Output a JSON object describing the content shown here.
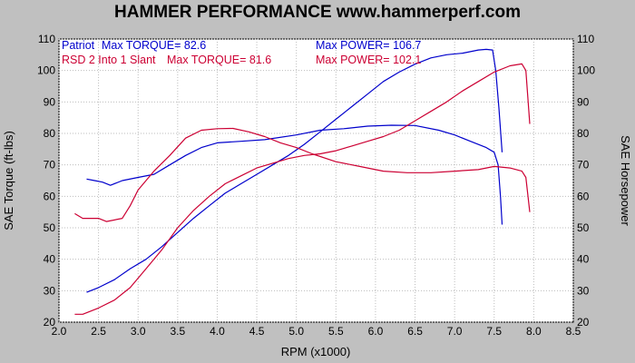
{
  "chart_data": {
    "type": "line",
    "title": "HAMMER PERFORMANCE www.hammerperf.com",
    "xlabel": "RPM (x1000)",
    "ylabel_left": "SAE Torque (ft-lbs)",
    "ylabel_right": "SAE Horsepower",
    "xlim": [
      2.0,
      8.5
    ],
    "ylim": [
      20,
      110
    ],
    "x_ticks": [
      "2.0",
      "2.5",
      "3.0",
      "3.5",
      "4.0",
      "4.5",
      "5.0",
      "5.5",
      "6.0",
      "6.5",
      "7.0",
      "7.5",
      "8.0",
      "8.5"
    ],
    "y_ticks": [
      "20",
      "30",
      "40",
      "50",
      "60",
      "70",
      "80",
      "90",
      "100",
      "110"
    ],
    "grid": true,
    "legend": [
      {
        "name": "Patriot",
        "torque_text": "Max TORQUE= 82.6",
        "power_text": "Max POWER= 106.7",
        "color": "#0000cc"
      },
      {
        "name": "RSD 2 Into 1 Slant",
        "torque_text": "Max TORQUE= 81.6",
        "power_text": "Max POWER= 102.1",
        "color": "#cc0033"
      }
    ],
    "series": [
      {
        "name": "Patriot",
        "measure": "torque",
        "color": "#0000cc",
        "x": [
          2.35,
          2.45,
          2.55,
          2.65,
          2.8,
          3.0,
          3.2,
          3.4,
          3.6,
          3.8,
          4.0,
          4.3,
          4.6,
          5.0,
          5.3,
          5.6,
          5.9,
          6.2,
          6.5,
          6.8,
          7.0,
          7.2,
          7.4,
          7.5,
          7.55,
          7.58,
          7.6
        ],
        "y": [
          65.5,
          65,
          64.5,
          63.5,
          65,
          66,
          67,
          70,
          73,
          75.5,
          77,
          77.5,
          78,
          79.5,
          81,
          81.5,
          82.3,
          82.6,
          82.5,
          81,
          79.5,
          77.5,
          75.5,
          74,
          70,
          60,
          51
        ]
      },
      {
        "name": "Patriot",
        "measure": "power",
        "color": "#0000cc",
        "x": [
          2.35,
          2.5,
          2.7,
          2.9,
          3.1,
          3.3,
          3.5,
          3.7,
          3.9,
          4.1,
          4.3,
          4.5,
          4.7,
          4.9,
          5.1,
          5.3,
          5.5,
          5.7,
          5.9,
          6.1,
          6.3,
          6.5,
          6.7,
          6.9,
          7.1,
          7.3,
          7.4,
          7.48,
          7.52,
          7.56,
          7.6
        ],
        "y": [
          29.5,
          31,
          33.5,
          37,
          40,
          44,
          48.5,
          53,
          57,
          61,
          64,
          67,
          70,
          73,
          76.5,
          80.5,
          84.5,
          88.5,
          92.5,
          96.5,
          99.5,
          102,
          104,
          105,
          105.5,
          106.5,
          106.7,
          106.5,
          100,
          88,
          74
        ]
      },
      {
        "name": "RSD 2 Into 1 Slant",
        "measure": "torque",
        "color": "#cc0033",
        "x": [
          2.2,
          2.3,
          2.4,
          2.5,
          2.6,
          2.8,
          2.9,
          3.0,
          3.2,
          3.4,
          3.6,
          3.8,
          4.0,
          4.2,
          4.4,
          4.6,
          4.8,
          5.0,
          5.2,
          5.5,
          5.8,
          6.1,
          6.4,
          6.7,
          7.0,
          7.3,
          7.5,
          7.7,
          7.85,
          7.9,
          7.95
        ],
        "y": [
          54.5,
          53,
          53,
          53,
          52,
          53,
          57,
          62,
          68,
          73,
          78.5,
          81,
          81.5,
          81.6,
          80.5,
          79,
          77,
          75.5,
          73.5,
          71,
          69.5,
          68,
          67.5,
          67.5,
          68,
          68.5,
          69.5,
          69,
          68,
          66,
          55
        ]
      },
      {
        "name": "RSD 2 Into 1 Slant",
        "measure": "power",
        "color": "#cc0033",
        "x": [
          2.2,
          2.3,
          2.5,
          2.7,
          2.9,
          3.1,
          3.3,
          3.5,
          3.7,
          3.9,
          4.1,
          4.3,
          4.5,
          4.7,
          4.9,
          5.1,
          5.3,
          5.5,
          5.7,
          5.9,
          6.1,
          6.3,
          6.5,
          6.7,
          6.9,
          7.1,
          7.3,
          7.5,
          7.7,
          7.85,
          7.9,
          7.95
        ],
        "y": [
          22.5,
          22.5,
          24.5,
          27,
          31,
          37,
          43,
          50,
          55.5,
          60,
          64,
          66.5,
          69,
          70.5,
          72,
          73,
          73.5,
          74.5,
          76,
          77.5,
          79,
          81,
          84,
          87,
          90,
          93.5,
          96.5,
          99.5,
          101.5,
          102.1,
          100,
          83
        ]
      }
    ]
  }
}
